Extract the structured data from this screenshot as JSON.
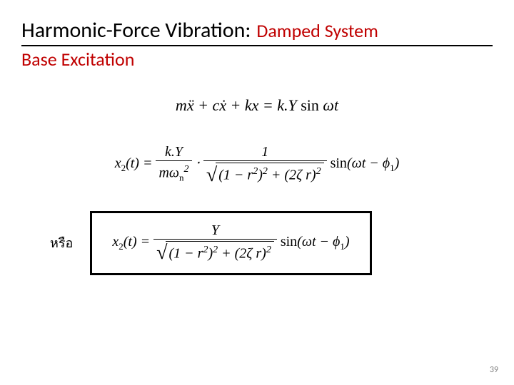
{
  "title": {
    "main": "Harmonic-Force Vibration:",
    "red": "Damped System"
  },
  "subtitle": "Base Excitation",
  "underline_color": "#000000",
  "eq1": {
    "lhs_m": "m",
    "lhs_xddot": "ẍ",
    "plus1": " + ",
    "lhs_c": "c",
    "lhs_xdot": "ẋ",
    "plus2": " + ",
    "lhs_k": "kx",
    "eq": " = ",
    "rhs_kY": "k.Y",
    "sin": " sin ",
    "omega_t": "ωt"
  },
  "eq2": {
    "lhs": "x",
    "lhs_sub": "2",
    "lhs_t": "(t) = ",
    "frac1_num": "k.Y",
    "frac1_den_left": "mω",
    "frac1_den_sub": "n",
    "frac1_den_sup": "2",
    "dot": " ⋅ ",
    "frac2_num": "1",
    "radicand_a": "(1 − r",
    "radicand_a_sup": "2",
    "radicand_a_close": ")",
    "radicand_a_sup2": "2",
    "radicand_plus": " + ",
    "radicand_b": "(2ζ r)",
    "radicand_b_sup": "2",
    "sin": " sin",
    "arg_open": "(ωt − ϕ",
    "phi_sub": "1",
    "arg_close": ")"
  },
  "or_label": "หรือ",
  "eq3": {
    "lhs": "x",
    "lhs_sub": "2",
    "lhs_t": "(t) = ",
    "frac_num": "Y",
    "radicand_a": "(1 − r",
    "radicand_a_sup": "2",
    "radicand_a_close": ")",
    "radicand_a_sup2": "2",
    "radicand_plus": " + ",
    "radicand_b": "(2ζ r)",
    "radicand_b_sup": "2",
    "sin": " sin",
    "arg_open": "(ωt − ϕ",
    "phi_sub": "1",
    "arg_close": ")"
  },
  "pagenum": "39",
  "colors": {
    "title_red": "#c00000",
    "text": "#000000",
    "page_num": "#7f7f7f",
    "bg": "#ffffff",
    "box_border": "#000000"
  },
  "fonts": {
    "title_size": 30,
    "title_red_size": 26,
    "subtitle_size": 26,
    "eq_size": 20,
    "pagenum_size": 12
  },
  "box": {
    "border_width": 3
  }
}
